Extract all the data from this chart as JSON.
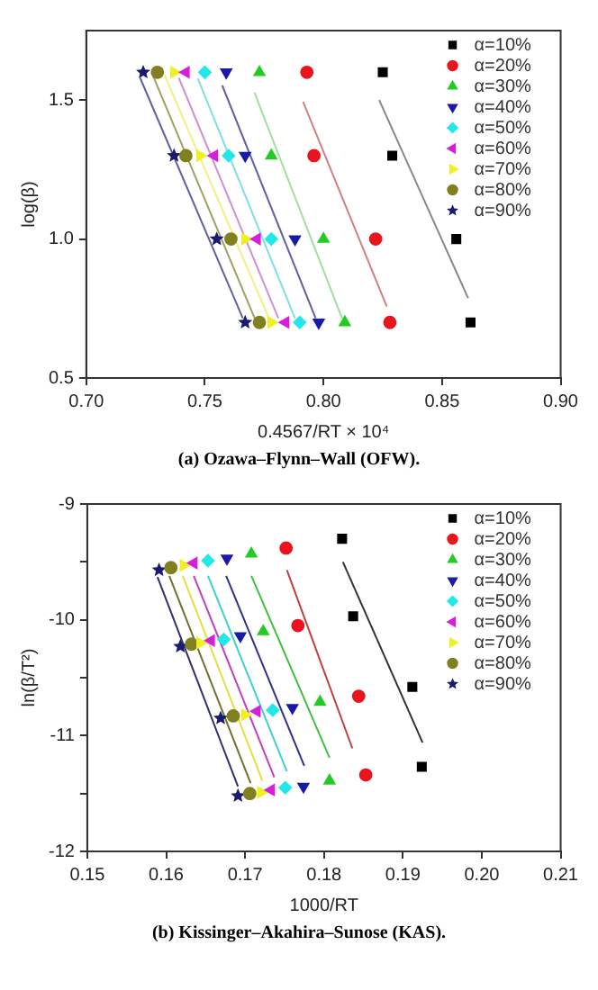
{
  "chart_data": [
    {
      "type": "scatter",
      "xlabel": "0.4567/RT × 10⁴",
      "ylabel": "log(β)",
      "annotations": [
        "(a) Ozawa–Flynn–Wall (OFW)."
      ],
      "xlim": [
        0.7,
        0.9
      ],
      "xticks": [
        {
          "value": 0.7,
          "label": "0.70"
        },
        {
          "value": 0.75,
          "label": "0.75"
        },
        {
          "value": 0.8,
          "label": "0.80"
        },
        {
          "value": 0.85,
          "label": "0.85"
        },
        {
          "value": 0.9,
          "label": "0.90"
        }
      ],
      "ylim": [
        0.5,
        1.75
      ],
      "yticks": [
        {
          "value": 0.5,
          "label": "0.5"
        },
        {
          "value": 1.0,
          "label": "1.0"
        },
        {
          "value": 1.5,
          "label": "1.5"
        }
      ],
      "grid": false,
      "legend": "top right",
      "series": [
        {
          "name": "α=10%",
          "color": "#000000",
          "marker": "square",
          "x": [
            0.825,
            0.829,
            0.856,
            0.862
          ],
          "values": [
            1.6,
            1.3,
            1.0,
            0.7
          ]
        },
        {
          "name": "α=20%",
          "color": "#e8141e",
          "marker": "circle",
          "x": [
            0.793,
            0.796,
            0.822,
            0.828
          ],
          "values": [
            1.6,
            1.3,
            1.0,
            0.7
          ]
        },
        {
          "name": "α=30%",
          "color": "#22cc22",
          "marker": "triangle",
          "x": [
            0.773,
            0.778,
            0.8,
            0.809
          ],
          "values": [
            1.6,
            1.3,
            1.0,
            0.7
          ]
        },
        {
          "name": "α=40%",
          "color": "#1a1aa8",
          "marker": "triangle-down",
          "x": [
            0.759,
            0.767,
            0.788,
            0.798
          ],
          "values": [
            1.6,
            1.3,
            1.0,
            0.7
          ]
        },
        {
          "name": "α=50%",
          "color": "#22e8e8",
          "marker": "diamond",
          "x": [
            0.75,
            0.76,
            0.778,
            0.79
          ],
          "values": [
            1.6,
            1.3,
            1.0,
            0.7
          ]
        },
        {
          "name": "α=60%",
          "color": "#d81ed8",
          "marker": "triangle-left",
          "x": [
            0.742,
            0.754,
            0.772,
            0.784
          ],
          "values": [
            1.6,
            1.3,
            1.0,
            0.7
          ]
        },
        {
          "name": "α=70%",
          "color": "#f0f020",
          "marker": "triangle-right",
          "x": [
            0.737,
            0.748,
            0.767,
            0.778
          ],
          "values": [
            1.6,
            1.3,
            1.0,
            0.7
          ]
        },
        {
          "name": "α=80%",
          "color": "#808020",
          "marker": "circle",
          "x": [
            0.73,
            0.742,
            0.761,
            0.773
          ],
          "values": [
            1.6,
            1.3,
            1.0,
            0.7
          ]
        },
        {
          "name": "α=90%",
          "color": "#1a1a6e",
          "marker": "star",
          "x": [
            0.724,
            0.737,
            0.755,
            0.767
          ],
          "values": [
            1.6,
            1.3,
            1.0,
            0.7
          ]
        },
        {
          "type": "line",
          "color": "#888888",
          "x": [
            0.8235,
            0.861
          ],
          "values": [
            1.5,
            0.787
          ]
        },
        {
          "type": "line",
          "color": "#d08080",
          "x": [
            0.7914,
            0.8267
          ],
          "values": [
            1.494,
            0.757
          ]
        },
        {
          "type": "line",
          "color": "#a0e0a0",
          "x": [
            0.7709,
            0.8079
          ],
          "values": [
            1.527,
            0.713
          ]
        },
        {
          "type": "line",
          "color": "#6060a0",
          "x": [
            0.7573,
            0.7967
          ],
          "values": [
            1.553,
            0.715
          ]
        },
        {
          "type": "line",
          "color": "#80e0e0",
          "x": [
            0.747,
            0.788
          ],
          "values": [
            1.578,
            0.715
          ]
        },
        {
          "type": "line",
          "color": "#d090d0",
          "x": [
            0.739,
            0.781
          ],
          "values": [
            1.58,
            0.715
          ]
        },
        {
          "type": "line",
          "color": "#f0f080",
          "x": [
            0.733,
            0.777
          ],
          "values": [
            1.59,
            0.715
          ]
        },
        {
          "type": "line",
          "color": "#a0a060",
          "x": [
            0.728,
            0.771
          ],
          "values": [
            1.59,
            0.715
          ]
        },
        {
          "type": "line",
          "color": "#6060a0",
          "x": [
            0.7227,
            0.766
          ],
          "values": [
            1.58,
            0.715
          ]
        }
      ]
    },
    {
      "type": "scatter",
      "xlabel": "1000/RT",
      "ylabel": "ln(β/T²)",
      "annotations": [
        "(b) Kissinger–Akahira–Sunose (KAS)."
      ],
      "xlim": [
        0.15,
        0.21
      ],
      "xticks": [
        {
          "value": 0.15,
          "label": "0.15"
        },
        {
          "value": 0.16,
          "label": "0.16"
        },
        {
          "value": 0.17,
          "label": "0.17"
        },
        {
          "value": 0.18,
          "label": "0.18"
        },
        {
          "value": 0.19,
          "label": "0.19"
        },
        {
          "value": 0.2,
          "label": "0.20"
        },
        {
          "value": 0.21,
          "label": "0.21"
        }
      ],
      "ylim": [
        -12,
        -9
      ],
      "yticks": [
        -12,
        {
          "value": -11.5,
          "label": null
        },
        -11,
        {
          "value": -10.5,
          "label": null
        },
        -10,
        {
          "value": -9.5,
          "label": null
        },
        -9
      ],
      "grid": false,
      "legend": "top right",
      "series": [
        {
          "name": "α=10%",
          "color": "#000000",
          "marker": "square",
          "x": [
            0.1823,
            0.1837,
            0.1912,
            0.1924
          ],
          "values": [
            -9.3,
            -9.97,
            -10.58,
            -11.27
          ]
        },
        {
          "name": "α=20%",
          "color": "#e8141e",
          "marker": "circle",
          "x": [
            0.1752,
            0.1767,
            0.1844,
            0.1853
          ],
          "values": [
            -9.38,
            -10.05,
            -10.66,
            -11.34
          ]
        },
        {
          "name": "α=30%",
          "color": "#22cc22",
          "marker": "triangle",
          "x": [
            0.1708,
            0.1723,
            0.1795,
            0.1807
          ],
          "values": [
            -9.43,
            -10.1,
            -10.71,
            -11.39
          ]
        },
        {
          "name": "α=40%",
          "color": "#1a1aa8",
          "marker": "triangle-down",
          "x": [
            0.1677,
            0.1694,
            0.176,
            0.1774
          ],
          "values": [
            -9.47,
            -10.14,
            -10.76,
            -11.44
          ]
        },
        {
          "name": "α=50%",
          "color": "#22e8e8",
          "marker": "diamond",
          "x": [
            0.1653,
            0.1673,
            0.1735,
            0.1751
          ],
          "values": [
            -9.49,
            -10.17,
            -10.78,
            -11.45
          ]
        },
        {
          "name": "α=60%",
          "color": "#d81ed8",
          "marker": "triangle-left",
          "x": [
            0.1635,
            0.1657,
            0.1715,
            0.1733
          ],
          "values": [
            -9.51,
            -10.18,
            -10.79,
            -11.47
          ]
        },
        {
          "name": "α=70%",
          "color": "#f0f020",
          "marker": "triangle-right",
          "x": [
            0.1622,
            0.1643,
            0.17,
            0.172
          ],
          "values": [
            -9.53,
            -10.2,
            -10.82,
            -11.49
          ]
        },
        {
          "name": "α=80%",
          "color": "#808020",
          "marker": "circle",
          "x": [
            0.1606,
            0.1632,
            0.1685,
            0.1706
          ],
          "values": [
            -9.55,
            -10.21,
            -10.83,
            -11.5
          ]
        },
        {
          "name": "α=90%",
          "color": "#1a1a6e",
          "marker": "star",
          "x": [
            0.1591,
            0.1618,
            0.1669,
            0.1691
          ],
          "values": [
            -9.57,
            -10.23,
            -10.85,
            -11.52
          ]
        },
        {
          "type": "line",
          "color": "#333333",
          "x": [
            0.1824,
            0.1925
          ],
          "values": [
            -9.5,
            -11.06
          ]
        },
        {
          "type": "line",
          "color": "#c04040",
          "x": [
            0.1753,
            0.1836
          ],
          "values": [
            -9.57,
            -11.11
          ]
        },
        {
          "type": "line",
          "color": "#40c040",
          "x": [
            0.1708,
            0.1807
          ],
          "values": [
            -9.62,
            -11.19
          ]
        },
        {
          "type": "line",
          "color": "#303090",
          "x": [
            0.1676,
            0.1775
          ],
          "values": [
            -9.62,
            -11.26
          ]
        },
        {
          "type": "line",
          "color": "#40d0d0",
          "x": [
            0.1653,
            0.1753
          ],
          "values": [
            -9.62,
            -11.31
          ]
        },
        {
          "type": "line",
          "color": "#c040c0",
          "x": [
            0.1635,
            0.1737
          ],
          "values": [
            -9.62,
            -11.36
          ]
        },
        {
          "type": "line",
          "color": "#e0e040",
          "x": [
            0.1621,
            0.1722
          ],
          "values": [
            -9.62,
            -11.39
          ]
        },
        {
          "type": "line",
          "color": "#707030",
          "x": [
            0.1604,
            0.1707
          ],
          "values": [
            -9.62,
            -11.41
          ]
        },
        {
          "type": "line",
          "color": "#303070",
          "x": [
            0.1589,
            0.1691
          ],
          "values": [
            -9.63,
            -11.44
          ]
        }
      ]
    }
  ]
}
